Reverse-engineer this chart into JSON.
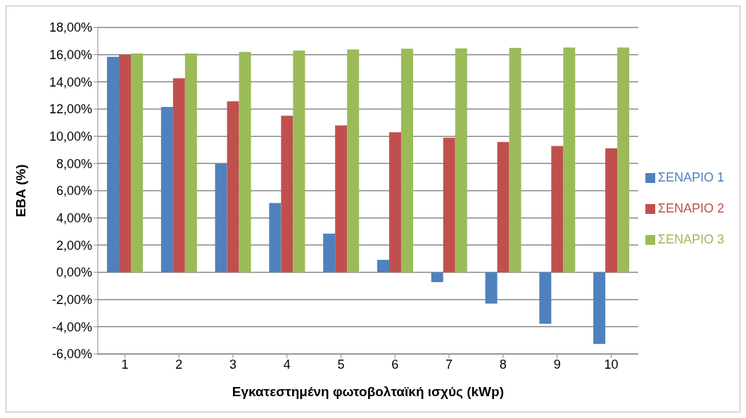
{
  "chart_data": {
    "type": "bar",
    "xlabel": "Εγκατεστημένη φωτοβολταϊκή ισχύς (kWp)",
    "ylabel": "ΕΒΑ (%)",
    "categories": [
      "1",
      "2",
      "3",
      "4",
      "5",
      "6",
      "7",
      "8",
      "9",
      "10"
    ],
    "series": [
      {
        "name": "ΣΕΝΑΡΙΟ 1",
        "color": "#4f81bd",
        "values": [
          15.84,
          12.15,
          7.99,
          5.1,
          2.85,
          0.92,
          -0.72,
          -2.3,
          -3.78,
          -5.26
        ]
      },
      {
        "name": "ΣΕΝΑΡΙΟ 2",
        "color": "#c0504d",
        "values": [
          16.0,
          14.26,
          12.57,
          11.51,
          10.8,
          10.29,
          9.89,
          9.58,
          9.29,
          9.12
        ]
      },
      {
        "name": "ΣΕΝΑΡΙΟ 3",
        "color": "#9bbb59",
        "values": [
          16.09,
          16.09,
          16.2,
          16.3,
          16.38,
          16.43,
          16.46,
          16.5,
          16.53,
          16.53
        ]
      }
    ],
    "ylim": [
      -6,
      18
    ],
    "yticks": [
      {
        "value": -6,
        "label": "-6,00%"
      },
      {
        "value": -4,
        "label": "-4,00%"
      },
      {
        "value": -2,
        "label": "-2,00%"
      },
      {
        "value": 0,
        "label": "0,00%"
      },
      {
        "value": 2,
        "label": "2,00%"
      },
      {
        "value": 4,
        "label": "4,00%"
      },
      {
        "value": 6,
        "label": "6,00%"
      },
      {
        "value": 8,
        "label": "8,00%"
      },
      {
        "value": 10,
        "label": "10,00%"
      },
      {
        "value": 12,
        "label": "12,00%"
      },
      {
        "value": 14,
        "label": "14,00%"
      },
      {
        "value": 16,
        "label": "16,00%"
      },
      {
        "value": 18,
        "label": "18,00%"
      }
    ],
    "grid": "y",
    "legend": "right"
  }
}
